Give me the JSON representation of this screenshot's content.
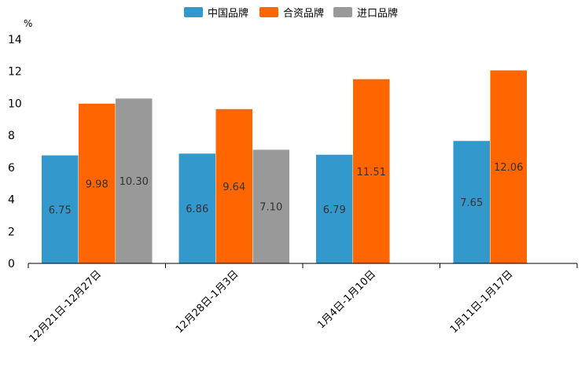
{
  "chart_data": {
    "type": "bar",
    "ylabel": "%",
    "ylim": [
      0,
      14
    ],
    "yticks": [
      0,
      2,
      4,
      6,
      8,
      10,
      12,
      14
    ],
    "grid": false,
    "legend_position": "top-center",
    "categories": [
      "12月21日-12月27日",
      "12月28日-1月3日",
      "1月4日-1月10日",
      "1月11日-1月17日"
    ],
    "series": [
      {
        "name": "中国品牌",
        "color": "#3399cc",
        "values": [
          6.75,
          6.86,
          6.79,
          7.65
        ],
        "labels": [
          "6.75",
          "6.86",
          "6.79",
          "7.65"
        ]
      },
      {
        "name": "合资品牌",
        "color": "#ff6600",
        "values": [
          9.98,
          9.64,
          11.51,
          12.06
        ],
        "labels": [
          "9.98",
          "9.64",
          "11.51",
          "12.06"
        ]
      },
      {
        "name": "进口品牌",
        "color": "#999999",
        "values": [
          10.3,
          7.1,
          null,
          null
        ],
        "labels": [
          "10.30",
          "7.10",
          null,
          null
        ]
      }
    ]
  }
}
